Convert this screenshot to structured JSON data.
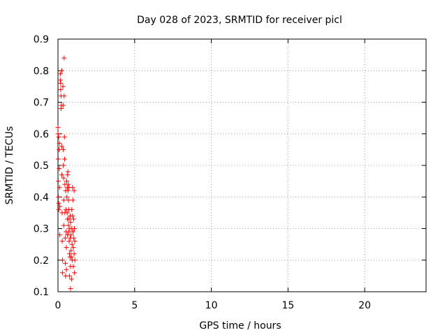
{
  "chart_data": {
    "type": "scatter",
    "title": "Day 028 of 2023, SRMTID for receiver picl",
    "xlabel": "GPS time / hours",
    "ylabel": "SRMTID / TECUs",
    "xlim": [
      0,
      24
    ],
    "ylim": [
      0.1,
      0.9
    ],
    "xticks": [
      0,
      5,
      10,
      15,
      20
    ],
    "xtick_labels": [
      "0",
      "5",
      "10",
      "15",
      "20"
    ],
    "yticks": [
      0.1,
      0.2,
      0.3,
      0.4,
      0.5,
      0.6,
      0.7,
      0.8,
      0.9
    ],
    "ytick_labels": [
      "0.1",
      "0.2",
      "0.3",
      "0.4",
      "0.5",
      "0.6",
      "0.7",
      "0.8",
      "0.9"
    ],
    "grid": true,
    "marker": "+",
    "color": "#ff0000",
    "series": [
      {
        "name": "picl",
        "points": [
          [
            0.0,
            0.62
          ],
          [
            0.0,
            0.6
          ],
          [
            0.02,
            0.52
          ],
          [
            0.02,
            0.45
          ],
          [
            0.03,
            0.4
          ],
          [
            0.05,
            0.38
          ],
          [
            0.05,
            0.36
          ],
          [
            0.05,
            0.59
          ],
          [
            0.07,
            0.55
          ],
          [
            0.08,
            0.49
          ],
          [
            0.1,
            0.57
          ],
          [
            0.1,
            0.43
          ],
          [
            0.12,
            0.37
          ],
          [
            0.12,
            0.28
          ],
          [
            0.15,
            0.79
          ],
          [
            0.15,
            0.77
          ],
          [
            0.18,
            0.76
          ],
          [
            0.18,
            0.74
          ],
          [
            0.2,
            0.72
          ],
          [
            0.2,
            0.68
          ],
          [
            0.22,
            0.69
          ],
          [
            0.25,
            0.8
          ],
          [
            0.25,
            0.56
          ],
          [
            0.25,
            0.47
          ],
          [
            0.27,
            0.35
          ],
          [
            0.28,
            0.26
          ],
          [
            0.3,
            0.2
          ],
          [
            0.3,
            0.16
          ],
          [
            0.32,
            0.75
          ],
          [
            0.33,
            0.69
          ],
          [
            0.35,
            0.55
          ],
          [
            0.35,
            0.5
          ],
          [
            0.37,
            0.46
          ],
          [
            0.38,
            0.39
          ],
          [
            0.38,
            0.31
          ],
          [
            0.4,
            0.72
          ],
          [
            0.4,
            0.84
          ],
          [
            0.42,
            0.59
          ],
          [
            0.43,
            0.52
          ],
          [
            0.45,
            0.44
          ],
          [
            0.45,
            0.35
          ],
          [
            0.47,
            0.27
          ],
          [
            0.48,
            0.19
          ],
          [
            0.5,
            0.15
          ],
          [
            0.5,
            0.42
          ],
          [
            0.52,
            0.36
          ],
          [
            0.53,
            0.29
          ],
          [
            0.55,
            0.24
          ],
          [
            0.55,
            0.17
          ],
          [
            0.57,
            0.45
          ],
          [
            0.58,
            0.4
          ],
          [
            0.6,
            0.43
          ],
          [
            0.6,
            0.35
          ],
          [
            0.62,
            0.33
          ],
          [
            0.62,
            0.28
          ],
          [
            0.63,
            0.47
          ],
          [
            0.65,
            0.48
          ],
          [
            0.65,
            0.42
          ],
          [
            0.67,
            0.44
          ],
          [
            0.68,
            0.39
          ],
          [
            0.68,
            0.31
          ],
          [
            0.7,
            0.36
          ],
          [
            0.7,
            0.29
          ],
          [
            0.72,
            0.43
          ],
          [
            0.72,
            0.33
          ],
          [
            0.73,
            0.26
          ],
          [
            0.75,
            0.22
          ],
          [
            0.75,
            0.15
          ],
          [
            0.77,
            0.3
          ],
          [
            0.78,
            0.21
          ],
          [
            0.8,
            0.34
          ],
          [
            0.8,
            0.27
          ],
          [
            0.82,
            0.18
          ],
          [
            0.82,
            0.11
          ],
          [
            0.83,
            0.32
          ],
          [
            0.85,
            0.28
          ],
          [
            0.85,
            0.23
          ],
          [
            0.87,
            0.21
          ],
          [
            0.88,
            0.14
          ],
          [
            0.9,
            0.36
          ],
          [
            0.9,
            0.3
          ],
          [
            0.92,
            0.25
          ],
          [
            0.93,
            0.2
          ],
          [
            0.95,
            0.43
          ],
          [
            0.95,
            0.34
          ],
          [
            0.97,
            0.39
          ],
          [
            0.98,
            0.29
          ],
          [
            1.0,
            0.24
          ],
          [
            1.0,
            0.18
          ],
          [
            1.02,
            0.33
          ],
          [
            1.03,
            0.27
          ],
          [
            1.05,
            0.42
          ],
          [
            1.05,
            0.22
          ],
          [
            1.07,
            0.3
          ],
          [
            1.08,
            0.16
          ],
          [
            1.1,
            0.26
          ],
          [
            1.1,
            0.2
          ]
        ]
      }
    ]
  }
}
